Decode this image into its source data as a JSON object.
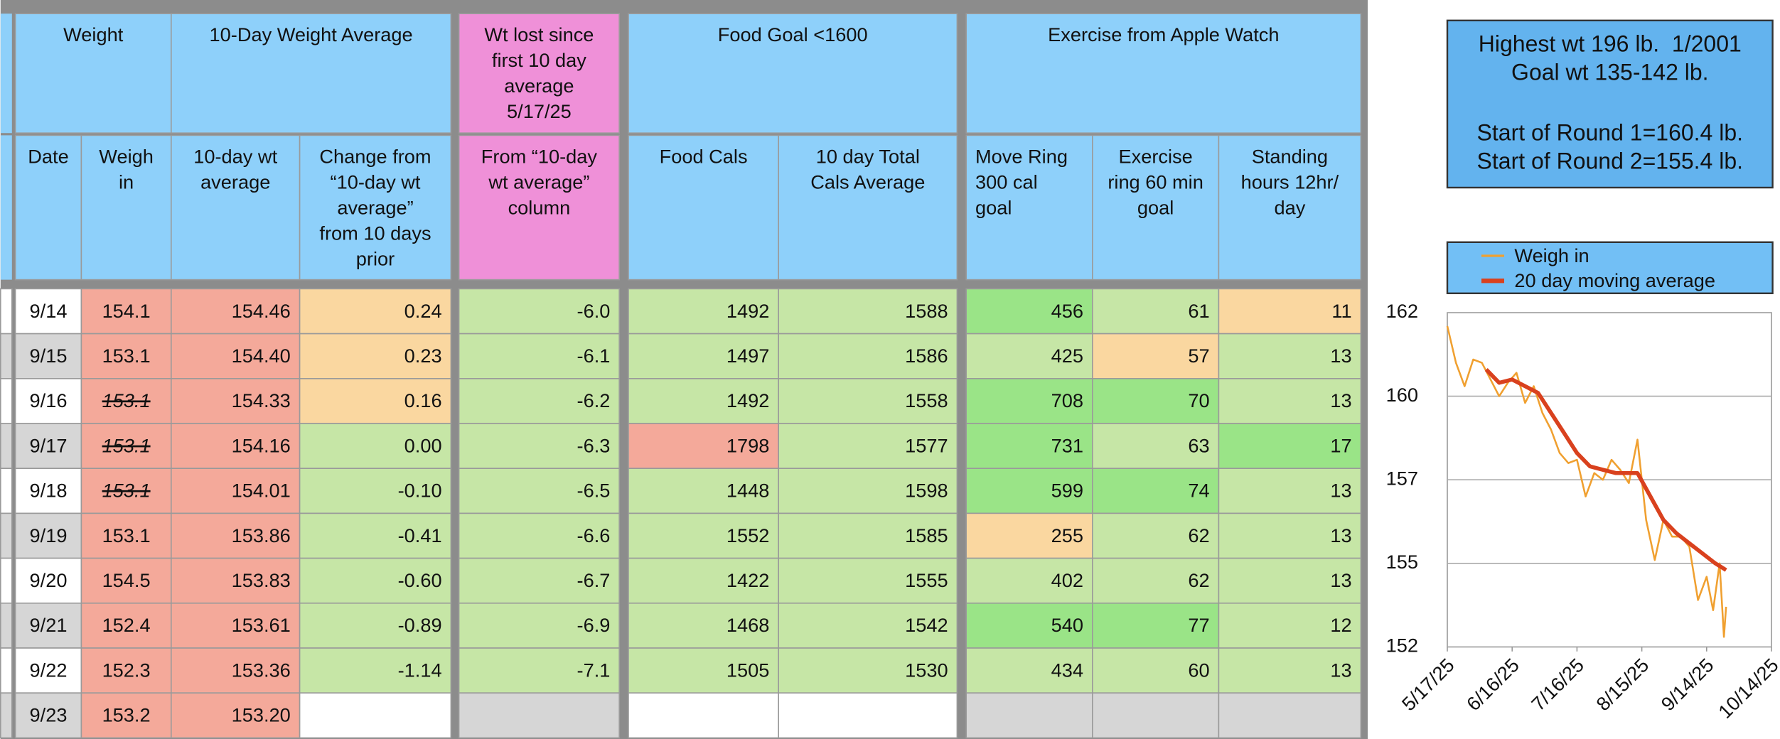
{
  "table": {
    "groups": [
      "Weight",
      "10-Day Weight Average",
      "Wt lost since\nfirst 10 day\naverage\n5/17/25",
      "Food Goal <1600",
      "Exercise from Apple Watch"
    ],
    "columns": [
      "Date",
      "Weigh\nin",
      "10-day wt\naverage",
      "Change from\n“10-day wt\naverage”\nfrom 10 days\nprior",
      "From “10-day\nwt average”\ncolumn",
      "Food Cals",
      "10 day Total\nCals Average",
      "Move Ring\n300 cal\ngoal",
      "Exercise\nring 60 min\ngoal",
      "Standing\nhours 12hr/\nday"
    ],
    "rows": [
      [
        "9/14",
        "154.1",
        "154.46",
        "0.24",
        "-6.0",
        "1492",
        "1588",
        "456",
        "61",
        "11"
      ],
      [
        "9/15",
        "153.1",
        "154.40",
        "0.23",
        "-6.1",
        "1497",
        "1586",
        "425",
        "57",
        "13"
      ],
      [
        "9/16",
        "153.1",
        "154.33",
        "0.16",
        "-6.2",
        "1492",
        "1558",
        "708",
        "70",
        "13"
      ],
      [
        "9/17",
        "153.1",
        "154.16",
        "0.00",
        "-6.3",
        "1798",
        "1577",
        "731",
        "63",
        "17"
      ],
      [
        "9/18",
        "153.1",
        "154.01",
        "-0.10",
        "-6.5",
        "1448",
        "1598",
        "599",
        "74",
        "13"
      ],
      [
        "9/19",
        "153.1",
        "153.86",
        "-0.41",
        "-6.6",
        "1552",
        "1585",
        "255",
        "62",
        "13"
      ],
      [
        "9/20",
        "154.5",
        "153.83",
        "-0.60",
        "-6.7",
        "1422",
        "1555",
        "402",
        "62",
        "13"
      ],
      [
        "9/21",
        "152.4",
        "153.61",
        "-0.89",
        "-6.9",
        "1468",
        "1542",
        "540",
        "77",
        "12"
      ],
      [
        "9/22",
        "152.3",
        "153.36",
        "-1.14",
        "-7.1",
        "1505",
        "1530",
        "434",
        "60",
        "13"
      ],
      [
        "9/23",
        "153.2",
        "153.20"
      ]
    ]
  },
  "info_box": [
    "Highest wt 196 lb.  1/2001",
    "Goal wt 135-142 lb.",
    "Start of Round 1=160.4 lb.",
    "Start of Round 2=155.4 lb."
  ],
  "chart_data": {
    "type": "line",
    "xlim": [
      "5/17/25",
      "10/14/25"
    ],
    "xticks": [
      "5/17/25",
      "6/16/25",
      "7/16/25",
      "8/15/25",
      "9/14/25",
      "10/14/25"
    ],
    "ylim": [
      152,
      162
    ],
    "yticks": [
      152,
      {
        "value": 154.5,
        "label": "155"
      },
      157,
      {
        "value": 159.5,
        "label": "160"
      },
      162
    ],
    "grid": true,
    "series": [
      {
        "name": "Weigh in",
        "color": "#f0a030",
        "x": [
          "5/17/25",
          "5/21/25",
          "5/25/25",
          "5/29/25",
          "6/2/25",
          "6/6/25",
          "6/10/25",
          "6/14/25",
          "6/18/25",
          "6/22/25",
          "6/26/25",
          "6/30/25",
          "7/4/25",
          "7/8/25",
          "7/12/25",
          "7/16/25",
          "7/20/25",
          "7/24/25",
          "7/28/25",
          "8/1/25",
          "8/5/25",
          "8/9/25",
          "8/13/25",
          "8/17/25",
          "8/21/25",
          "8/25/25",
          "8/29/25",
          "9/2/25",
          "9/6/25",
          "9/10/25",
          "9/14/25",
          "9/17/25",
          "9/20/25",
          "9/22/25",
          "9/23/25"
        ],
        "values": [
          161.6,
          160.5,
          159.8,
          160.6,
          160.5,
          160.0,
          159.5,
          159.9,
          160.2,
          159.3,
          159.8,
          159.0,
          158.5,
          157.8,
          157.5,
          157.6,
          156.5,
          157.2,
          157.0,
          157.6,
          157.3,
          156.9,
          158.2,
          155.8,
          154.6,
          155.8,
          155.3,
          155.3,
          155.0,
          153.4,
          154.1,
          153.1,
          154.5,
          152.3,
          153.2
        ]
      },
      {
        "name": "20 day moving average",
        "color": "#d9411e",
        "x": [
          "6/4/25",
          "6/10/25",
          "6/16/25",
          "6/22/25",
          "6/28/25",
          "7/4/25",
          "7/10/25",
          "7/16/25",
          "7/22/25",
          "7/28/25",
          "8/3/25",
          "8/9/25",
          "8/13/25",
          "8/19/25",
          "8/25/25",
          "8/31/25",
          "9/6/25",
          "9/12/25",
          "9/18/25",
          "9/23/25"
        ],
        "values": [
          160.3,
          159.9,
          160.0,
          159.8,
          159.6,
          159.0,
          158.4,
          157.8,
          157.4,
          157.3,
          157.2,
          157.2,
          157.2,
          156.5,
          155.8,
          155.4,
          155.1,
          154.8,
          154.5,
          154.3
        ]
      }
    ]
  }
}
